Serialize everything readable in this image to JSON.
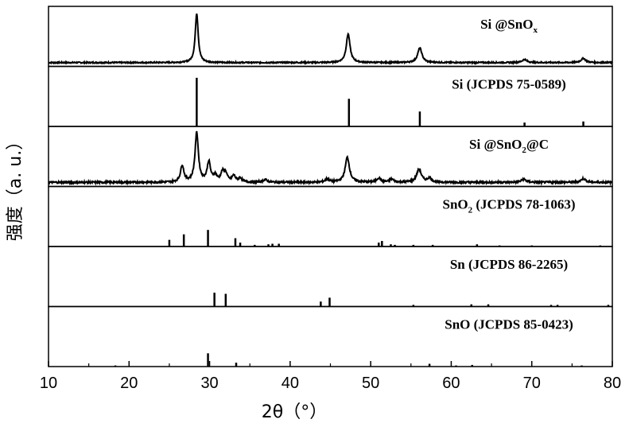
{
  "chart_data": {
    "type": "line",
    "xlabel": "2θ（°）",
    "ylabel": "强度（a. u.）",
    "xlim": [
      10,
      80
    ],
    "x_ticks": [
      10,
      20,
      30,
      40,
      50,
      60,
      70,
      80
    ],
    "panels": [
      {
        "label": "Si @SnOx",
        "kind": "pattern",
        "noise": 0.012,
        "peaks": [
          [
            28.4,
            0.95,
            0.22
          ],
          [
            47.2,
            0.55,
            0.28
          ],
          [
            56.1,
            0.28,
            0.32
          ],
          [
            69.1,
            0.06,
            0.35
          ],
          [
            76.4,
            0.08,
            0.35
          ]
        ]
      },
      {
        "label": "Si (JCPDS 75-0589)",
        "kind": "sticks",
        "sticks": [
          [
            28.4,
            0.88
          ],
          [
            47.3,
            0.5
          ],
          [
            56.1,
            0.27
          ],
          [
            69.1,
            0.07
          ],
          [
            76.4,
            0.09
          ]
        ]
      },
      {
        "label": "Si @SnO2@C",
        "kind": "pattern",
        "noise": 0.018,
        "peaks": [
          [
            26.6,
            0.32,
            0.25
          ],
          [
            28.4,
            0.95,
            0.25
          ],
          [
            29.9,
            0.38,
            0.25
          ],
          [
            30.7,
            0.12,
            0.25
          ],
          [
            31.6,
            0.18,
            0.25
          ],
          [
            32.0,
            0.15,
            0.25
          ],
          [
            33.0,
            0.12,
            0.25
          ],
          [
            33.8,
            0.08,
            0.25
          ],
          [
            36.9,
            0.05,
            0.3
          ],
          [
            44.6,
            0.06,
            0.3
          ],
          [
            47.1,
            0.48,
            0.32
          ],
          [
            51.0,
            0.08,
            0.3
          ],
          [
            52.6,
            0.06,
            0.3
          ],
          [
            56.0,
            0.25,
            0.35
          ],
          [
            57.3,
            0.08,
            0.3
          ],
          [
            69.0,
            0.06,
            0.35
          ],
          [
            76.4,
            0.07,
            0.35
          ]
        ]
      },
      {
        "label": "SnO2 (JCPDS 78-1063)",
        "kind": "sticks",
        "sticks": [
          [
            25.0,
            0.12
          ],
          [
            26.8,
            0.22
          ],
          [
            29.8,
            0.3
          ],
          [
            33.2,
            0.15
          ],
          [
            33.8,
            0.07
          ],
          [
            35.6,
            0.03
          ],
          [
            37.3,
            0.04
          ],
          [
            37.8,
            0.05
          ],
          [
            38.6,
            0.05
          ],
          [
            51.0,
            0.07
          ],
          [
            51.4,
            0.1
          ],
          [
            52.5,
            0.04
          ],
          [
            53.0,
            0.03
          ],
          [
            55.3,
            0.03
          ],
          [
            57.7,
            0.03
          ],
          [
            63.2,
            0.04
          ],
          [
            66.0,
            0.02
          ],
          [
            70.0,
            0.02
          ],
          [
            78.5,
            0.02
          ]
        ]
      },
      {
        "label": "Sn (JCPDS 86-2265)",
        "kind": "sticks",
        "sticks": [
          [
            30.6,
            0.25
          ],
          [
            32.0,
            0.23
          ],
          [
            43.8,
            0.09
          ],
          [
            44.9,
            0.16
          ],
          [
            55.3,
            0.03
          ],
          [
            62.5,
            0.04
          ],
          [
            64.6,
            0.04
          ],
          [
            72.4,
            0.03
          ],
          [
            73.2,
            0.03
          ],
          [
            79.5,
            0.03
          ]
        ]
      },
      {
        "label": "SnO (JCPDS 85-0423)",
        "kind": "sticks",
        "sticks": [
          [
            18.3,
            0.02
          ],
          [
            29.8,
            0.24
          ],
          [
            33.3,
            0.07
          ],
          [
            57.3,
            0.05
          ],
          [
            60.6,
            0.02
          ],
          [
            62.6,
            0.03
          ],
          [
            76.2,
            0.02
          ]
        ]
      }
    ]
  }
}
